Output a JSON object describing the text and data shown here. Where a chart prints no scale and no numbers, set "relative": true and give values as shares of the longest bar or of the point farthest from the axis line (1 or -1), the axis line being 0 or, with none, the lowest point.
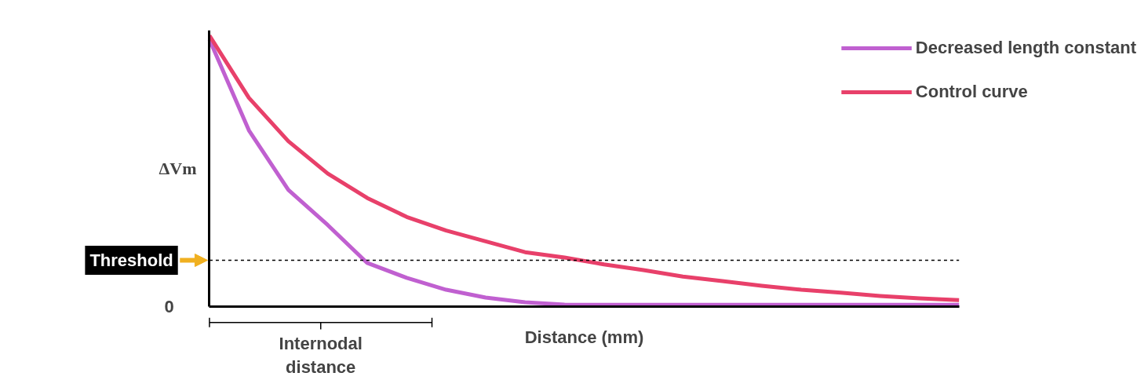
{
  "chart_data": {
    "type": "line",
    "relative": true,
    "xlabel": "Distance (mm)",
    "ylabel": "ΔVm",
    "legend": "top right",
    "grid": false,
    "tick_labels": false,
    "categories": [
      null,
      null,
      null,
      null,
      null,
      null,
      null,
      null,
      null,
      null,
      null,
      null,
      null,
      null,
      null,
      null,
      null,
      null,
      null,
      null
    ],
    "series": [
      {
        "name": "Decreased length constant",
        "color": "#c060d0",
        "values": [
          0.985,
          0.65,
          0.43,
          0.3,
          0.16,
          0.105,
          0.061,
          0.032,
          0.015,
          0.006,
          0.005,
          0.005,
          0.005,
          0.005,
          0.005,
          0.005,
          0.005,
          0.005,
          0.005,
          0.005
        ]
      },
      {
        "name": "Control curve",
        "color": "#e8406a",
        "values": [
          1.0,
          0.77,
          0.61,
          0.49,
          0.4,
          0.33,
          0.28,
          0.24,
          0.2,
          0.18,
          0.155,
          0.134,
          0.11,
          0.093,
          0.076,
          0.061,
          0.05,
          0.038,
          0.029,
          0.023
        ]
      }
    ],
    "ref_lines": [
      {
        "axis": "y",
        "value": 0.17,
        "label": "Threshold",
        "line_style": "dashed"
      }
    ],
    "annotations": [
      "0",
      "Internodal distance"
    ]
  }
}
